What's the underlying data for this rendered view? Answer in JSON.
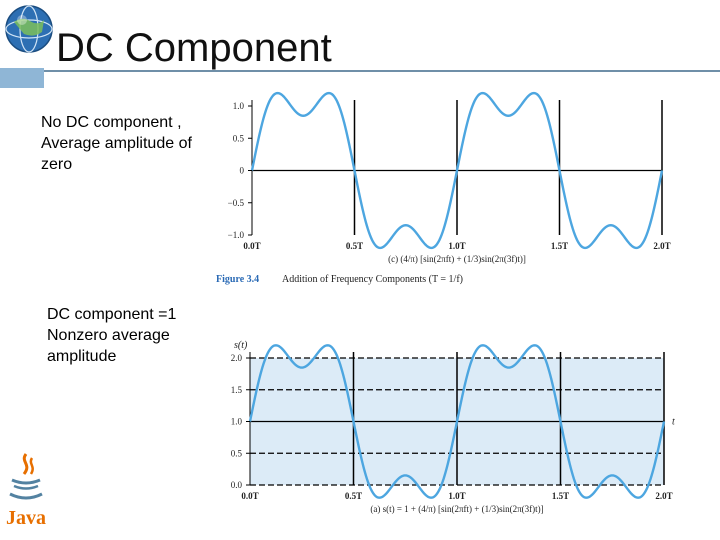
{
  "slide": {
    "title": "DC Component"
  },
  "notes": {
    "first": [
      "No DC component ,",
      "Average amplitude of",
      "zero"
    ],
    "second": [
      "DC component =1",
      "Nonzero average",
      "amplitude"
    ]
  },
  "logos": {
    "top_left": "globe-logo",
    "bottom_left_text": "Java"
  },
  "figure_caption": {
    "number": "Figure 3.4",
    "text": "Addition of Frequency Components (T = 1/f)"
  },
  "chart_data": [
    {
      "type": "line",
      "title": "",
      "xlabel": "(c) (4/π) [sin(2πft) + (1/3)sin(2π(3f)t)]",
      "ylabel": "",
      "x_ticks": [
        "0.0T",
        "0.5T",
        "1.0T",
        "1.5T",
        "2.0T"
      ],
      "y_ticks": [
        "1.0",
        "0.5",
        "0",
        "−0.5",
        "−1.0"
      ],
      "xlim": [
        0,
        2
      ],
      "ylim": [
        -1.0,
        1.0
      ],
      "series": [
        {
          "function": "(4/π)[sin(2πft) + (1/3)sin(2π(3f)t)]",
          "dc_offset": 0
        }
      ],
      "shaded": false,
      "dashed_reference_lines": [],
      "solid_reference_line": 0
    },
    {
      "type": "line",
      "title": "",
      "xlabel": "(a) s(t) = 1 + (4/π) [sin(2πft) + (1/3)sin(2π(3f)t)]",
      "ylabel": "s(t)",
      "x_axis_label": "t",
      "x_ticks": [
        "0.0T",
        "0.5T",
        "1.0T",
        "1.5T",
        "2.0T"
      ],
      "y_ticks": [
        "2.0",
        "1.5",
        "1.0",
        "0.5",
        "0.0"
      ],
      "xlim": [
        0,
        2
      ],
      "ylim": [
        0,
        2.0
      ],
      "series": [
        {
          "function": "1 + (4/π)[sin(2πft) + (1/3)sin(2π(3f)t)]",
          "dc_offset": 1
        }
      ],
      "shaded": true,
      "dashed_reference_lines": [
        2.0,
        1.5,
        0.5,
        0.0
      ],
      "solid_reference_line": 1.0
    }
  ]
}
